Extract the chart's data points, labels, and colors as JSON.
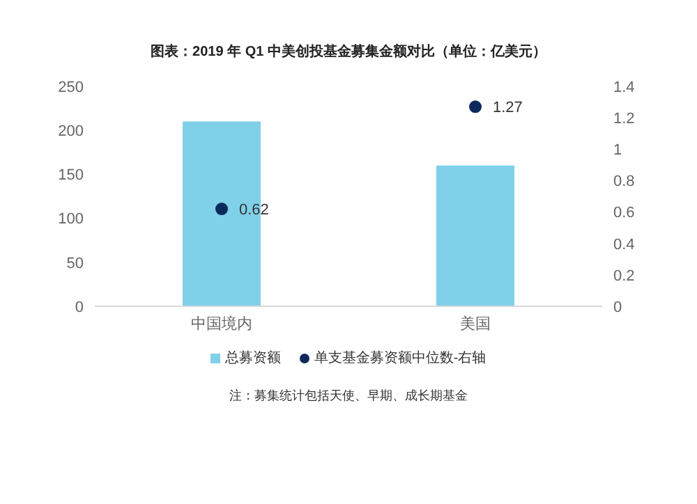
{
  "chart_data": {
    "type": "bar",
    "title": "图表：2019 年 Q1 中美创投基金募集金额对比（单位：亿美元）",
    "categories": [
      "中国境内",
      "美国"
    ],
    "series": [
      {
        "name": "总募资额",
        "type": "bar",
        "color": "#7fd0e8",
        "values": [
          210,
          160
        ]
      },
      {
        "name": "单支基金募资额中位数-右轴",
        "type": "scatter",
        "axis": "y2",
        "color": "#0d2a5c",
        "values": [
          0.62,
          1.27
        ],
        "value_labels": [
          "0.62",
          "1.27"
        ]
      }
    ],
    "ylim": [
      0,
      250
    ],
    "yticks": [
      0,
      50,
      100,
      150,
      200,
      250
    ],
    "y2lim": [
      0,
      1.4
    ],
    "y2ticks": [
      0,
      0.2,
      0.4,
      0.6,
      0.8,
      1,
      1.2,
      1.4
    ],
    "grid": false,
    "legend": "bottom",
    "marker": "circle",
    "annotations": [
      "注：募集统计包括天使、早期、成长期基金"
    ]
  }
}
